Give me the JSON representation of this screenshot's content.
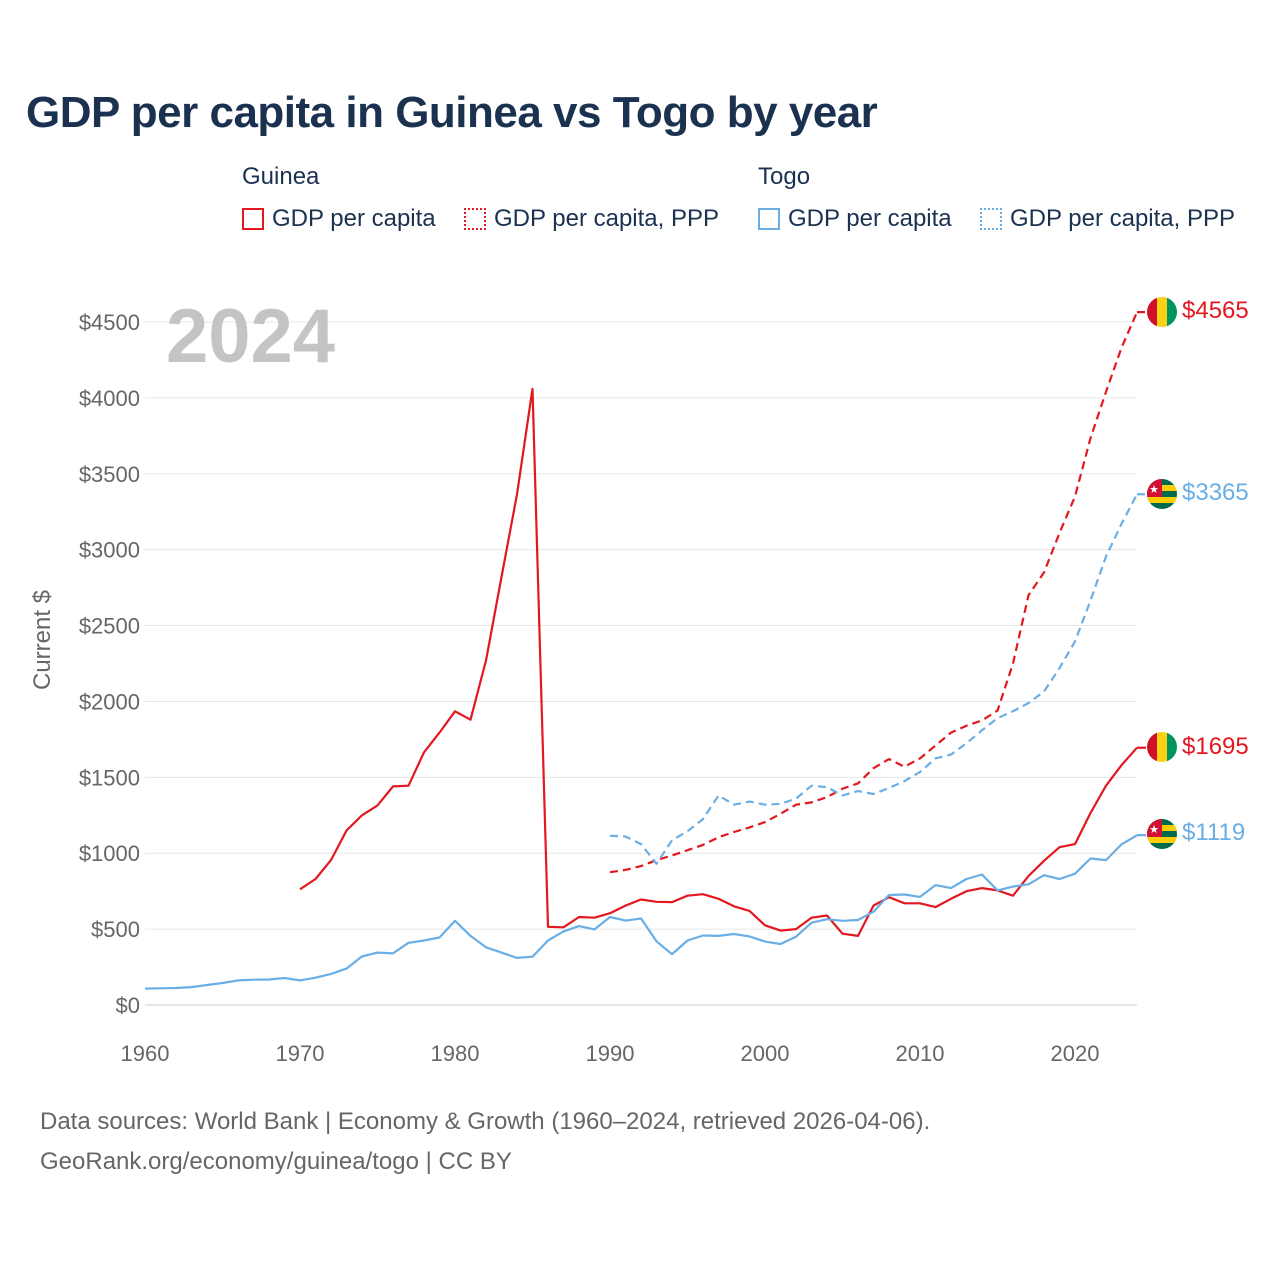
{
  "title": "GDP per capita in Guinea vs Togo by year",
  "legend": {
    "groups": [
      {
        "country": "Guinea",
        "items": [
          {
            "label": "GDP per capita",
            "style": "solid",
            "color": "#e3171f"
          },
          {
            "label": "GDP per capita, PPP",
            "style": "dotted",
            "color": "#e3171f"
          }
        ]
      },
      {
        "country": "Togo",
        "items": [
          {
            "label": "GDP per capita",
            "style": "solid",
            "color": "#6aaee6"
          },
          {
            "label": "GDP per capita, PPP",
            "style": "dotted",
            "color": "#6aaee6"
          }
        ]
      }
    ]
  },
  "year_watermark": "2024",
  "footer": {
    "line1": "Data sources: World Bank | Economy & Growth (1960–2024, retrieved 2026-04-06).",
    "line2": "GeoRank.org/economy/guinea/togo | CC BY"
  },
  "chart_data": {
    "type": "line",
    "title": "GDP per capita in Guinea vs Togo by year",
    "xlabel": "",
    "ylabel": "Current $",
    "xlim": [
      1960,
      2024
    ],
    "ylim": [
      0,
      4500
    ],
    "x_ticks": [
      1960,
      1970,
      1980,
      1990,
      2000,
      2010,
      2020
    ],
    "y_ticks": [
      0,
      500,
      1000,
      1500,
      2000,
      2500,
      3000,
      3500,
      4000,
      4500
    ],
    "y_tick_labels": [
      "$0",
      "$500",
      "$1000",
      "$1500",
      "$2000",
      "$2500",
      "$3000",
      "$3500",
      "$4000",
      "$4500"
    ],
    "grid": true,
    "series": [
      {
        "name": "Guinea GDP per capita",
        "country": "Guinea",
        "color": "#e3171f",
        "dash": "solid",
        "x": [
          1970,
          1971,
          1972,
          1973,
          1974,
          1975,
          1976,
          1977,
          1978,
          1979,
          1980,
          1981,
          1982,
          1983,
          1984,
          1985,
          1986,
          1987,
          1988,
          1989,
          1990,
          1991,
          1992,
          1993,
          1994,
          1995,
          1996,
          1997,
          1998,
          1999,
          2000,
          2001,
          2002,
          2003,
          2004,
          2005,
          2006,
          2007,
          2008,
          2009,
          2010,
          2011,
          2012,
          2013,
          2014,
          2015,
          2016,
          2017,
          2018,
          2019,
          2020,
          2021,
          2022,
          2023,
          2024
        ],
        "values": [
          762,
          830,
          955,
          1150,
          1250,
          1315,
          1440,
          1445,
          1665,
          1795,
          1935,
          1880,
          2270,
          2820,
          3365,
          4060,
          515,
          512,
          580,
          575,
          605,
          655,
          695,
          680,
          678,
          720,
          730,
          700,
          650,
          620,
          525,
          490,
          500,
          575,
          590,
          470,
          455,
          655,
          710,
          670,
          670,
          645,
          700,
          750,
          770,
          755,
          720,
          850,
          950,
          1040,
          1060,
          1265,
          1445,
          1580,
          1695
        ],
        "end_label": "$1695"
      },
      {
        "name": "Guinea GDP per capita, PPP",
        "country": "Guinea",
        "color": "#e3171f",
        "dash": "dashed",
        "x": [
          1990,
          1991,
          1992,
          1993,
          1994,
          1995,
          1996,
          1997,
          1998,
          1999,
          2000,
          2001,
          2002,
          2003,
          2004,
          2005,
          2006,
          2007,
          2008,
          2009,
          2010,
          2011,
          2012,
          2013,
          2014,
          2015,
          2016,
          2017,
          2018,
          2019,
          2020,
          2021,
          2022,
          2023,
          2024
        ],
        "values": [
          875,
          890,
          915,
          955,
          985,
          1020,
          1055,
          1105,
          1140,
          1170,
          1205,
          1260,
          1320,
          1335,
          1370,
          1425,
          1460,
          1560,
          1620,
          1570,
          1625,
          1710,
          1795,
          1840,
          1875,
          1940,
          2250,
          2700,
          2850,
          3110,
          3350,
          3735,
          4040,
          4330,
          4565
        ],
        "end_label": "$4565"
      },
      {
        "name": "Togo GDP per capita",
        "country": "Togo",
        "color": "#6aaee6",
        "dash": "solid",
        "x": [
          1960,
          1961,
          1962,
          1963,
          1964,
          1965,
          1966,
          1967,
          1968,
          1969,
          1970,
          1971,
          1972,
          1973,
          1974,
          1975,
          1976,
          1977,
          1978,
          1979,
          1980,
          1981,
          1982,
          1983,
          1984,
          1985,
          1986,
          1987,
          1988,
          1989,
          1990,
          1991,
          1992,
          1993,
          1994,
          1995,
          1996,
          1997,
          1998,
          1999,
          2000,
          2001,
          2002,
          2003,
          2004,
          2005,
          2006,
          2007,
          2008,
          2009,
          2010,
          2011,
          2012,
          2013,
          2014,
          2015,
          2016,
          2017,
          2018,
          2019,
          2020,
          2021,
          2022,
          2023,
          2024
        ],
        "values": [
          108,
          110,
          112,
          118,
          132,
          145,
          162,
          167,
          168,
          178,
          162,
          180,
          205,
          240,
          320,
          345,
          340,
          410,
          425,
          445,
          555,
          455,
          380,
          345,
          310,
          318,
          425,
          485,
          520,
          498,
          580,
          556,
          570,
          420,
          335,
          425,
          458,
          455,
          468,
          452,
          418,
          402,
          450,
          542,
          565,
          555,
          560,
          615,
          725,
          728,
          712,
          790,
          770,
          830,
          860,
          755,
          780,
          795,
          855,
          830,
          865,
          965,
          955,
          1058,
          1119
        ],
        "end_label": "$1119"
      },
      {
        "name": "Togo GDP per capita, PPP",
        "country": "Togo",
        "color": "#6aaee6",
        "dash": "dashed",
        "x": [
          1990,
          1991,
          1992,
          1993,
          1994,
          1995,
          1996,
          1997,
          1998,
          1999,
          2000,
          2001,
          2002,
          2003,
          2004,
          2005,
          2006,
          2007,
          2008,
          2009,
          2010,
          2011,
          2012,
          2013,
          2014,
          2015,
          2016,
          2017,
          2018,
          2019,
          2020,
          2021,
          2022,
          2023,
          2024
        ],
        "values": [
          1115,
          1110,
          1060,
          930,
          1085,
          1145,
          1225,
          1380,
          1320,
          1340,
          1320,
          1325,
          1360,
          1445,
          1435,
          1380,
          1410,
          1390,
          1430,
          1475,
          1535,
          1625,
          1650,
          1725,
          1810,
          1890,
          1935,
          1990,
          2065,
          2220,
          2395,
          2665,
          2955,
          3170,
          3365
        ],
        "end_label": "$3365"
      }
    ]
  }
}
